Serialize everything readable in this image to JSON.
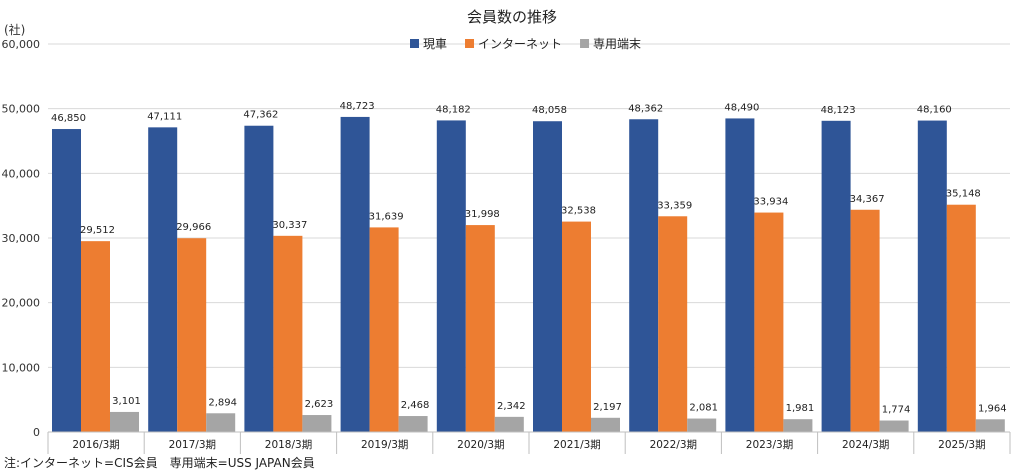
{
  "chart_data": {
    "type": "bar",
    "title": "会員数の推移",
    "unit_label": "(社)",
    "xlabel": "",
    "ylabel": "",
    "ylim": [
      0,
      60000
    ],
    "yticks": [
      0,
      10000,
      20000,
      30000,
      40000,
      50000,
      60000
    ],
    "ytick_labels": [
      "0",
      "10,000",
      "20,000",
      "30,000",
      "40,000",
      "50,000",
      "60,000"
    ],
    "grid": true,
    "legend_position": "top-right",
    "categories": [
      "2016/3期",
      "2017/3期",
      "2018/3期",
      "2019/3期",
      "2020/3期",
      "2021/3期",
      "2022/3期",
      "2023/3期",
      "2024/3期",
      "2025/3期"
    ],
    "series": [
      {
        "name": "現車",
        "color": "#2f5597",
        "values": [
          46850,
          47111,
          47362,
          48723,
          48182,
          48058,
          48362,
          48490,
          48123,
          48160
        ]
      },
      {
        "name": "インターネット",
        "color": "#ed7d31",
        "values": [
          29512,
          29966,
          30337,
          31639,
          31998,
          32538,
          33359,
          33934,
          34367,
          35148
        ]
      },
      {
        "name": "専用端末",
        "color": "#a5a5a5",
        "values": [
          3101,
          2894,
          2623,
          2468,
          2342,
          2197,
          2081,
          1981,
          1774,
          1964
        ]
      }
    ],
    "data_labels": [
      [
        "46,850",
        "47,111",
        "47,362",
        "48,723",
        "48,182",
        "48,058",
        "48,362",
        "48,490",
        "48,123",
        "48,160"
      ],
      [
        "29,512",
        "29,966",
        "30,337",
        "31,639",
        "31,998",
        "32,538",
        "33,359",
        "33,934",
        "34,367",
        "35,148"
      ],
      [
        "3,101",
        "2,894",
        "2,623",
        "2,468",
        "2,342",
        "2,197",
        "2,081",
        "1,981",
        "1,774",
        "1,964"
      ]
    ],
    "footnote": "注:インターネット=CIS会員　専用端末=USS JAPAN会員"
  }
}
